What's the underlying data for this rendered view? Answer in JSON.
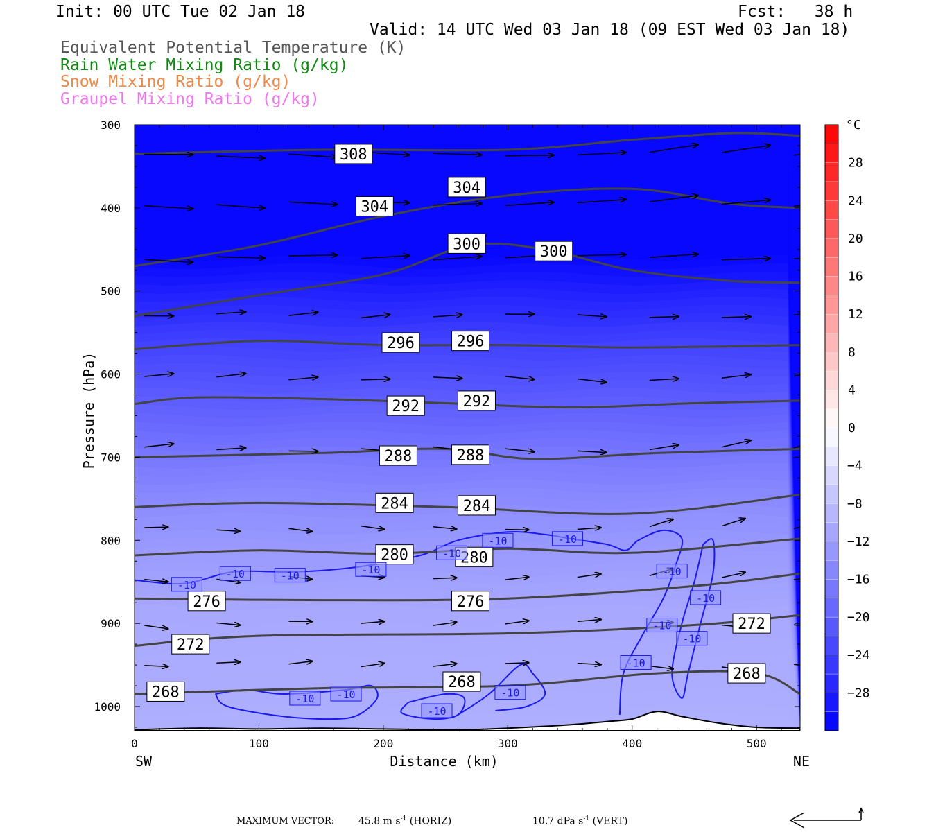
{
  "header": {
    "init": "Init: 00 UTC Tue 02 Jan 18",
    "fcst": "Fcst:   38 h",
    "valid": "Valid: 14 UTC Wed 03 Jan 18 (09 EST Wed 03 Jan 18)"
  },
  "legend": [
    {
      "label": "Equivalent Potential Temperature (K)",
      "color": "#555555"
    },
    {
      "label": "Rain Water Mixing Ratio (g/kg)",
      "color": "#118811"
    },
    {
      "label": "Snow Mixing Ratio (g/kg)",
      "color": "#ee8844"
    },
    {
      "label": "Graupel Mixing Ratio (g/kg)",
      "color": "#ee77ee"
    }
  ],
  "footer": {
    "vector_label": "MAXIMUM VECTOR:",
    "horiz_value": "45.8 m s",
    "horiz_exp": "-1",
    "horiz_unit": "(HORIZ)",
    "vert_value": "10.7 dPa s",
    "vert_exp": "-1",
    "vert_unit": "(VERT)"
  },
  "chart_data": {
    "type": "contour",
    "ylabel": "Pressure (hPa)",
    "xlabel": "Distance (km)",
    "x_left_label": "SW",
    "x_right_label": "NE",
    "xlim": [
      0,
      535
    ],
    "ylim": [
      1030,
      300
    ],
    "xticks": [
      0,
      100,
      200,
      300,
      400,
      500
    ],
    "yticks": [
      300,
      400,
      500,
      600,
      700,
      800,
      900,
      1000
    ],
    "colorbar": {
      "unit": "°C",
      "labels": [
        28,
        24,
        20,
        16,
        12,
        8,
        4,
        0,
        -4,
        -8,
        -12,
        -16,
        -20,
        -24,
        -28
      ],
      "range": [
        -32,
        32
      ],
      "step": 2
    },
    "theta_e_contours": [
      {
        "value": 308,
        "points": [
          [
            0,
            335
          ],
          [
            150,
            330
          ],
          [
            300,
            330
          ],
          [
            400,
            318
          ],
          [
            480,
            310
          ],
          [
            535,
            313
          ]
        ],
        "labels": [
          [
            176,
            335
          ]
        ]
      },
      {
        "value": 304,
        "points": [
          [
            0,
            470
          ],
          [
            100,
            445
          ],
          [
            200,
            410
          ],
          [
            300,
            385
          ],
          [
            400,
            377
          ],
          [
            480,
            395
          ],
          [
            535,
            400
          ]
        ],
        "labels": [
          [
            193,
            398
          ],
          [
            267,
            375
          ]
        ]
      },
      {
        "value": 300,
        "points": [
          [
            0,
            530
          ],
          [
            100,
            505
          ],
          [
            200,
            480
          ],
          [
            270,
            445
          ],
          [
            330,
            450
          ],
          [
            400,
            475
          ],
          [
            480,
            488
          ],
          [
            535,
            490
          ]
        ],
        "labels": [
          [
            267,
            443
          ],
          [
            337,
            452
          ]
        ]
      },
      {
        "value": 296,
        "points": [
          [
            0,
            570
          ],
          [
            100,
            560
          ],
          [
            200,
            565
          ],
          [
            300,
            565
          ],
          [
            400,
            568
          ],
          [
            535,
            565
          ]
        ],
        "labels": [
          [
            214,
            562
          ],
          [
            270,
            560
          ]
        ]
      },
      {
        "value": 292,
        "points": [
          [
            0,
            636
          ],
          [
            50,
            628
          ],
          [
            150,
            630
          ],
          [
            250,
            635
          ],
          [
            350,
            640
          ],
          [
            450,
            635
          ],
          [
            535,
            632
          ]
        ],
        "labels": [
          [
            218,
            638
          ],
          [
            275,
            632
          ]
        ]
      },
      {
        "value": 288,
        "points": [
          [
            0,
            700
          ],
          [
            150,
            695
          ],
          [
            250,
            690
          ],
          [
            320,
            702
          ],
          [
            420,
            695
          ],
          [
            535,
            690
          ]
        ],
        "labels": [
          [
            212,
            698
          ],
          [
            270,
            697
          ]
        ]
      },
      {
        "value": 284,
        "points": [
          [
            0,
            760
          ],
          [
            100,
            755
          ],
          [
            250,
            760
          ],
          [
            400,
            768
          ],
          [
            535,
            745
          ]
        ],
        "labels": [
          [
            209,
            755
          ],
          [
            275,
            758
          ]
        ]
      },
      {
        "value": 280,
        "points": [
          [
            0,
            818
          ],
          [
            100,
            812
          ],
          [
            200,
            816
          ],
          [
            300,
            810
          ],
          [
            400,
            815
          ],
          [
            535,
            798
          ]
        ],
        "labels": [
          [
            209,
            817
          ],
          [
            273,
            820
          ]
        ]
      },
      {
        "value": 276,
        "points": [
          [
            0,
            870
          ],
          [
            150,
            872
          ],
          [
            300,
            870
          ],
          [
            450,
            855
          ],
          [
            535,
            840
          ]
        ],
        "labels": [
          [
            58,
            873
          ],
          [
            270,
            873
          ]
        ]
      },
      {
        "value": 272,
        "points": [
          [
            0,
            927
          ],
          [
            100,
            915
          ],
          [
            300,
            912
          ],
          [
            450,
            902
          ],
          [
            535,
            890
          ]
        ],
        "labels": [
          [
            45,
            925
          ],
          [
            496,
            900
          ]
        ]
      },
      {
        "value": 268,
        "points": [
          [
            0,
            985
          ],
          [
            150,
            978
          ],
          [
            300,
            975
          ],
          [
            420,
            960
          ],
          [
            500,
            960
          ],
          [
            535,
            985
          ]
        ],
        "labels": [
          [
            25,
            982
          ],
          [
            263,
            970
          ],
          [
            492,
            960
          ]
        ]
      }
    ],
    "temperature_contour": {
      "value": -10,
      "labels": [
        [
          42,
          853
        ],
        [
          81,
          840
        ],
        [
          125,
          842
        ],
        [
          190,
          835
        ],
        [
          255,
          815
        ],
        [
          292,
          800
        ],
        [
          348,
          798
        ],
        [
          432,
          837
        ],
        [
          459,
          869
        ],
        [
          424,
          902
        ],
        [
          448,
          918
        ],
        [
          403,
          947
        ],
        [
          137,
          990
        ],
        [
          170,
          985
        ],
        [
          243,
          1005
        ],
        [
          302,
          983
        ]
      ]
    },
    "wind_vector_rows_hpa": [
      335,
      395,
      460,
      530,
      605,
      690,
      785,
      845,
      900,
      950
    ]
  }
}
